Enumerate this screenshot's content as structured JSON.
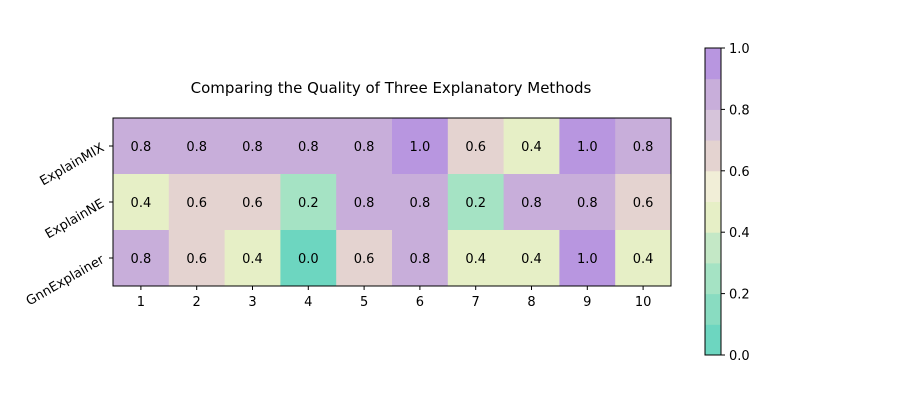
{
  "chart_data": {
    "type": "heatmap",
    "title": "Comparing the Quality of Three Explanatory Methods",
    "x_categories": [
      "1",
      "2",
      "3",
      "4",
      "5",
      "6",
      "7",
      "8",
      "9",
      "10"
    ],
    "y_categories": [
      "ExplainMIX",
      "ExplainNE",
      "GnnExplainer"
    ],
    "values": [
      [
        0.8,
        0.8,
        0.8,
        0.8,
        0.8,
        1.0,
        0.6,
        0.4,
        1.0,
        0.8
      ],
      [
        0.4,
        0.6,
        0.6,
        0.2,
        0.8,
        0.8,
        0.2,
        0.8,
        0.8,
        0.6
      ],
      [
        0.8,
        0.6,
        0.4,
        0.0,
        0.6,
        0.8,
        0.4,
        0.4,
        1.0,
        0.4
      ]
    ],
    "value_labels": [
      [
        "0.8",
        "0.8",
        "0.8",
        "0.8",
        "0.8",
        "1.0",
        "0.6",
        "0.4",
        "1.0",
        "0.8"
      ],
      [
        "0.4",
        "0.6",
        "0.6",
        "0.2",
        "0.8",
        "0.8",
        "0.2",
        "0.8",
        "0.8",
        "0.6"
      ],
      [
        "0.8",
        "0.6",
        "0.4",
        "0.0",
        "0.6",
        "0.8",
        "0.4",
        "0.4",
        "1.0",
        "0.4"
      ]
    ],
    "colorbar": {
      "range": [
        0.0,
        1.0
      ],
      "ticks": [
        "0.0",
        "0.2",
        "0.4",
        "0.6",
        "0.8",
        "1.0"
      ],
      "bins": 10,
      "colors": [
        "#6dd6c0",
        "#89dcc1",
        "#a5e3c4",
        "#c4e8c6",
        "#e6efc6",
        "#f1eed7",
        "#e4d3d0",
        "#d6c4da",
        "#c8aeda",
        "#b896e0"
      ]
    },
    "grid": false
  }
}
